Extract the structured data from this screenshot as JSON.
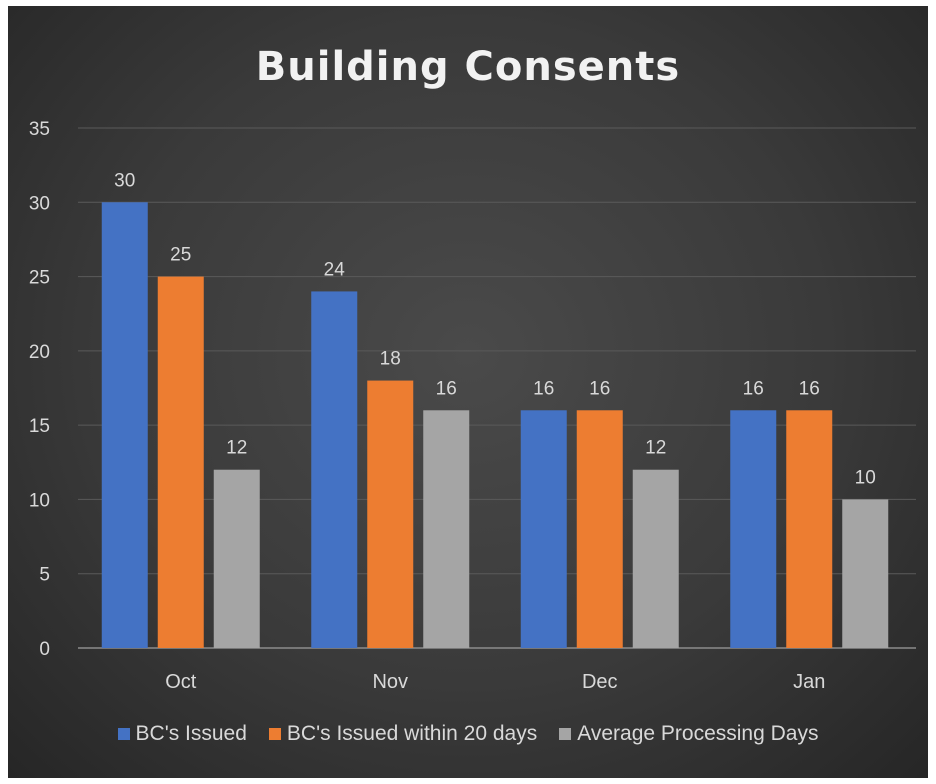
{
  "chart_data": {
    "type": "bar",
    "title": "Building Consents",
    "categories": [
      "Oct",
      "Nov",
      "Dec",
      "Jan"
    ],
    "series": [
      {
        "name": "BC's Issued",
        "values": [
          30,
          24,
          16,
          16
        ],
        "color": "#4472c4"
      },
      {
        "name": "BC's Issued within 20 days",
        "values": [
          25,
          18,
          16,
          16
        ],
        "color": "#ed7d31"
      },
      {
        "name": "Average Processing Days",
        "values": [
          12,
          16,
          12,
          10
        ],
        "color": "#a5a5a5"
      }
    ],
    "ylim": [
      0,
      35
    ],
    "yticks": [
      0,
      5,
      10,
      15,
      20,
      25,
      30,
      35
    ],
    "xlabel": "",
    "ylabel": "",
    "grid": true,
    "legend": "bottom",
    "data_labels": true
  }
}
